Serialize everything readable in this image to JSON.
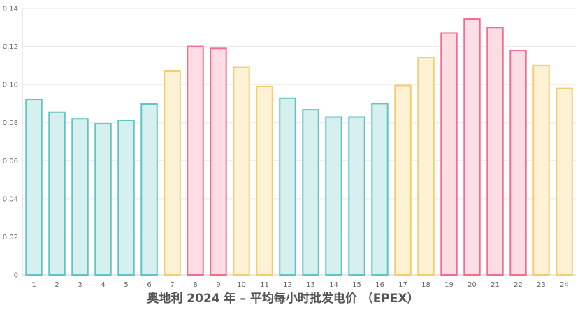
{
  "chart_data": {
    "type": "bar",
    "title": "奥地利 2024 年 – 平均每小时批发电价 （EPEX）",
    "xlabel": "",
    "ylabel": "",
    "ylim": [
      0,
      0.14
    ],
    "yticks": [
      "0",
      "0.02",
      "0.04",
      "0.06",
      "0.08",
      "0.10",
      "0.12",
      "0.14"
    ],
    "grid": true,
    "categories": [
      "1",
      "2",
      "3",
      "4",
      "5",
      "6",
      "7",
      "8",
      "9",
      "10",
      "11",
      "12",
      "13",
      "14",
      "15",
      "16",
      "17",
      "18",
      "19",
      "20",
      "21",
      "22",
      "23",
      "24"
    ],
    "values": [
      0.092,
      0.0855,
      0.082,
      0.0795,
      0.081,
      0.0898,
      0.107,
      0.12,
      0.119,
      0.109,
      0.099,
      0.0928,
      0.0868,
      0.083,
      0.083,
      0.09,
      0.0995,
      0.1143,
      0.127,
      0.1345,
      0.13,
      0.118,
      0.11,
      0.098
    ],
    "color_groups": [
      "teal",
      "teal",
      "teal",
      "teal",
      "teal",
      "teal",
      "yellow",
      "pink",
      "pink",
      "yellow",
      "yellow",
      "teal",
      "teal",
      "teal",
      "teal",
      "teal",
      "yellow",
      "yellow",
      "pink",
      "pink",
      "pink",
      "pink",
      "yellow",
      "yellow"
    ],
    "colors": {
      "teal": {
        "stroke": "#5ec4c4",
        "fill": "#d6f0f0"
      },
      "yellow": {
        "stroke": "#f5cd6a",
        "fill": "#fdf2d6"
      },
      "pink": {
        "stroke": "#ef6f8e",
        "fill": "#fcdde4"
      }
    },
    "grid_color": "#e8e8e8",
    "axis_color": "#d0d0d0"
  }
}
